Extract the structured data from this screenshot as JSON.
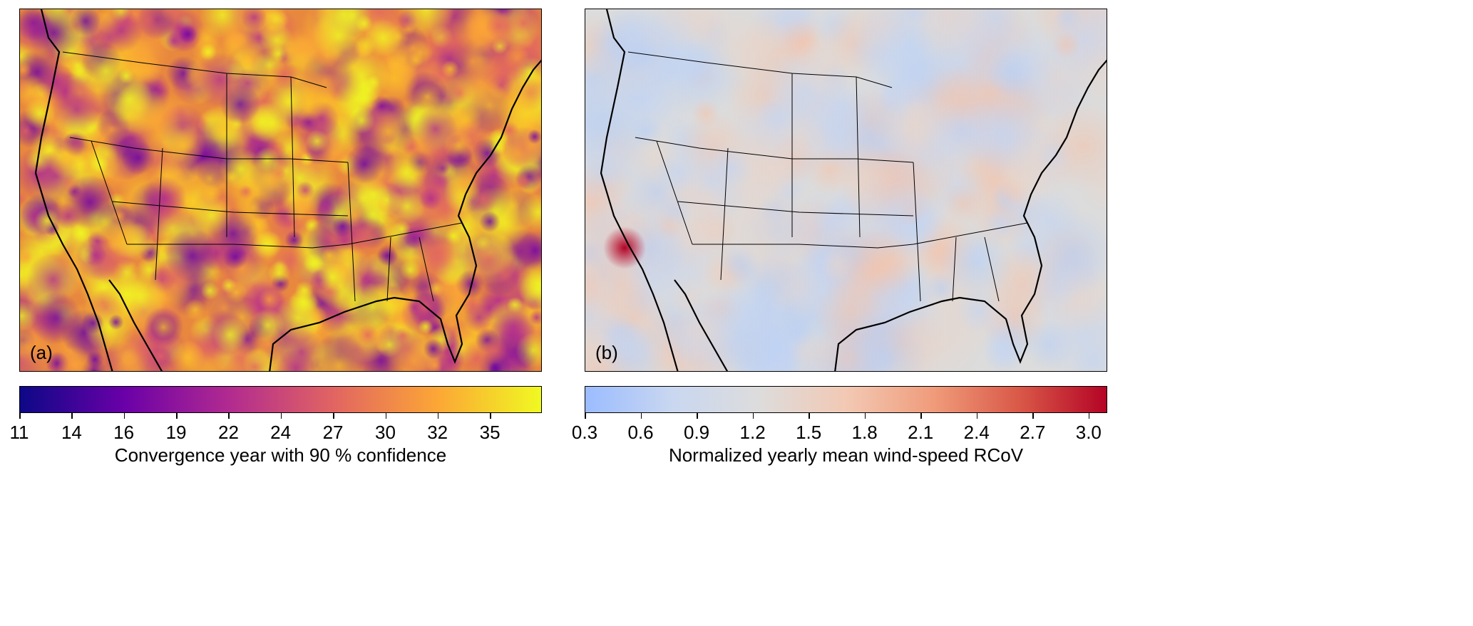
{
  "panels": [
    {
      "label": "(a)",
      "colormap": "plasma",
      "colorbar": {
        "label": "Convergence year with 90 % confidence",
        "range": [
          11,
          37.65
        ],
        "tick_values": [
          11,
          13.67,
          16.33,
          19,
          21.67,
          24.33,
          27,
          29.67,
          32.33,
          35
        ],
        "tick_labels": [
          "11",
          "14",
          "16",
          "19",
          "22",
          "24",
          "27",
          "30",
          "32",
          "35"
        ],
        "colors": [
          "#0d0887",
          "#6a00a8",
          "#b12a90",
          "#e16462",
          "#fca636",
          "#f0f921"
        ]
      }
    },
    {
      "label": "(b)",
      "colormap": "coolwarm",
      "colorbar": {
        "label": "Normalized yearly mean wind-speed RCoV",
        "range": [
          0.3,
          3.1
        ],
        "tick_values": [
          0.3,
          0.6,
          0.9,
          1.2,
          1.5,
          1.8,
          2.1,
          2.4,
          2.7,
          3.0
        ],
        "tick_labels": [
          "0.3",
          "0.6",
          "0.9",
          "1.2",
          "1.5",
          "1.8",
          "2.1",
          "2.4",
          "2.7",
          "3.0"
        ],
        "colors": [
          "#9bbcff",
          "#c9d7f0",
          "#dddcdc",
          "#f2c9b4",
          "#f09c7b",
          "#d95847",
          "#b40426"
        ]
      }
    }
  ]
}
